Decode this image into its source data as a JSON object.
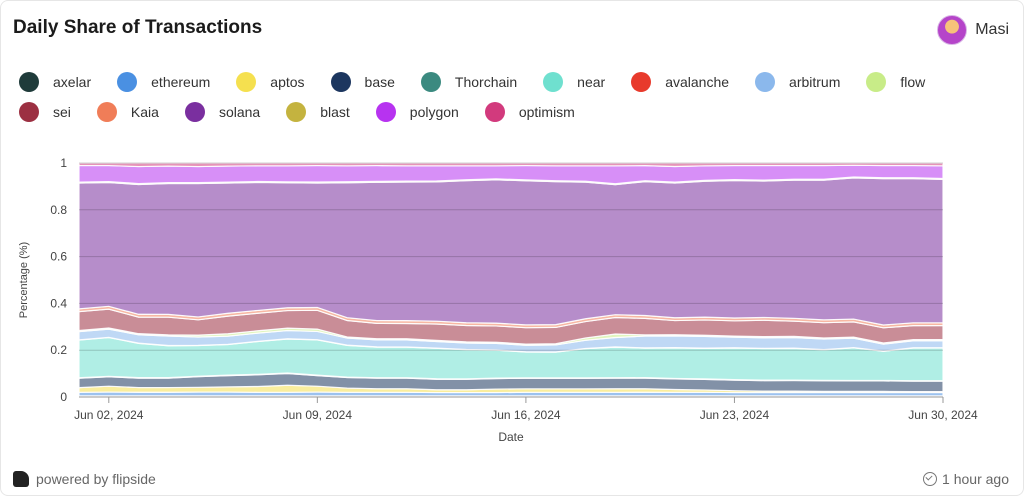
{
  "header": {
    "title": "Daily Share of Transactions",
    "user_name": "Masi"
  },
  "footer": {
    "powered_by": "powered by flipside",
    "updated": "1 hour ago"
  },
  "icons": {
    "brand": "flipside-logo-icon",
    "updated": "clock-check-icon",
    "avatar": "user-avatar"
  },
  "chart_data": {
    "type": "area",
    "stacked": true,
    "normalized": true,
    "xlabel": "Date",
    "ylabel": "Percentage (%)",
    "ylim": [
      0,
      1
    ],
    "yticks": [
      "0",
      "0.2",
      "0.4",
      "0.6",
      "0.8",
      "1"
    ],
    "x": [
      "2024-06-01",
      "2024-06-02",
      "2024-06-03",
      "2024-06-04",
      "2024-06-05",
      "2024-06-06",
      "2024-06-07",
      "2024-06-08",
      "2024-06-09",
      "2024-06-10",
      "2024-06-11",
      "2024-06-12",
      "2024-06-13",
      "2024-06-14",
      "2024-06-15",
      "2024-06-16",
      "2024-06-17",
      "2024-06-18",
      "2024-06-19",
      "2024-06-20",
      "2024-06-21",
      "2024-06-22",
      "2024-06-23",
      "2024-06-24",
      "2024-06-25",
      "2024-06-26",
      "2024-06-27",
      "2024-06-28",
      "2024-06-29",
      "2024-06-30"
    ],
    "xtick_labels": [
      "Jun 02, 2024",
      "Jun 09, 2024",
      "Jun 16, 2024",
      "Jun 23, 2024",
      "Jun 30, 2024"
    ],
    "xtick_index": [
      1,
      8,
      15,
      22,
      29
    ],
    "grid": "horizontal",
    "legend_position": "top",
    "series": [
      {
        "name": "axelar",
        "color": "#1f3b3a",
        "values": [
          0.005,
          0.005,
          0.005,
          0.005,
          0.005,
          0.005,
          0.005,
          0.005,
          0.005,
          0.005,
          0.005,
          0.005,
          0.005,
          0.005,
          0.005,
          0.005,
          0.005,
          0.005,
          0.005,
          0.005,
          0.005,
          0.005,
          0.005,
          0.005,
          0.005,
          0.005,
          0.005,
          0.005,
          0.005,
          0.005
        ]
      },
      {
        "name": "ethereum",
        "color": "#4a90e2",
        "values": [
          0.015,
          0.016,
          0.015,
          0.015,
          0.016,
          0.016,
          0.015,
          0.015,
          0.016,
          0.015,
          0.015,
          0.015,
          0.014,
          0.014,
          0.014,
          0.015,
          0.015,
          0.015,
          0.015,
          0.015,
          0.015,
          0.015,
          0.014,
          0.014,
          0.014,
          0.014,
          0.014,
          0.014,
          0.014,
          0.014
        ]
      },
      {
        "name": "aptos",
        "color": "#f5e04f",
        "values": [
          0.02,
          0.025,
          0.02,
          0.02,
          0.02,
          0.022,
          0.025,
          0.03,
          0.025,
          0.018,
          0.015,
          0.015,
          0.012,
          0.012,
          0.015,
          0.015,
          0.015,
          0.015,
          0.015,
          0.015,
          0.012,
          0.01,
          0.008,
          0.006,
          0.006,
          0.005,
          0.005,
          0.005,
          0.004,
          0.004
        ]
      },
      {
        "name": "base",
        "color": "#1c365f",
        "values": [
          0.04,
          0.04,
          0.04,
          0.04,
          0.045,
          0.048,
          0.05,
          0.05,
          0.045,
          0.045,
          0.045,
          0.045,
          0.045,
          0.045,
          0.045,
          0.045,
          0.045,
          0.045,
          0.045,
          0.045,
          0.045,
          0.045,
          0.045,
          0.045,
          0.045,
          0.045,
          0.045,
          0.045,
          0.045,
          0.045
        ]
      },
      {
        "name": "Thorchain",
        "color": "#3b8a80",
        "values": [
          0.002,
          0.002,
          0.002,
          0.002,
          0.002,
          0.002,
          0.002,
          0.002,
          0.002,
          0.002,
          0.002,
          0.002,
          0.002,
          0.002,
          0.002,
          0.002,
          0.002,
          0.002,
          0.002,
          0.002,
          0.002,
          0.002,
          0.002,
          0.002,
          0.002,
          0.002,
          0.002,
          0.002,
          0.002,
          0.002
        ]
      },
      {
        "name": "near",
        "color": "#6fe0cf",
        "values": [
          0.16,
          0.165,
          0.145,
          0.135,
          0.13,
          0.13,
          0.14,
          0.145,
          0.15,
          0.135,
          0.13,
          0.13,
          0.13,
          0.125,
          0.12,
          0.11,
          0.11,
          0.125,
          0.13,
          0.125,
          0.13,
          0.13,
          0.135,
          0.135,
          0.135,
          0.13,
          0.14,
          0.125,
          0.14,
          0.14
        ]
      },
      {
        "name": "avalanche",
        "color": "#e83a2c",
        "values": [
          0.001,
          0.001,
          0.001,
          0.001,
          0.001,
          0.001,
          0.001,
          0.001,
          0.001,
          0.001,
          0.001,
          0.001,
          0.001,
          0.001,
          0.001,
          0.001,
          0.001,
          0.001,
          0.001,
          0.001,
          0.001,
          0.001,
          0.001,
          0.001,
          0.001,
          0.001,
          0.001,
          0.001,
          0.001,
          0.001
        ]
      },
      {
        "name": "arbitrum",
        "color": "#8bb8ec",
        "values": [
          0.035,
          0.035,
          0.035,
          0.04,
          0.035,
          0.035,
          0.035,
          0.035,
          0.035,
          0.03,
          0.03,
          0.03,
          0.028,
          0.028,
          0.028,
          0.028,
          0.03,
          0.035,
          0.04,
          0.05,
          0.05,
          0.05,
          0.045,
          0.045,
          0.045,
          0.045,
          0.04,
          0.03,
          0.03,
          0.03
        ]
      },
      {
        "name": "flow",
        "color": "#c8ec88",
        "values": [
          0.005,
          0.005,
          0.005,
          0.005,
          0.008,
          0.01,
          0.01,
          0.01,
          0.01,
          0.005,
          0.005,
          0.005,
          0.005,
          0.005,
          0.005,
          0.005,
          0.005,
          0.01,
          0.015,
          0.005,
          0.005,
          0.005,
          0.005,
          0.005,
          0.005,
          0.005,
          0.005,
          0.005,
          0.005,
          0.005
        ]
      },
      {
        "name": "sei",
        "color": "#9c3042",
        "values": [
          0.08,
          0.08,
          0.07,
          0.075,
          0.065,
          0.075,
          0.075,
          0.075,
          0.08,
          0.07,
          0.065,
          0.065,
          0.07,
          0.07,
          0.07,
          0.07,
          0.07,
          0.07,
          0.07,
          0.07,
          0.06,
          0.065,
          0.065,
          0.07,
          0.065,
          0.065,
          0.065,
          0.065,
          0.06,
          0.06
        ]
      },
      {
        "name": "Kaia",
        "color": "#f07d58",
        "values": [
          0.012,
          0.012,
          0.012,
          0.012,
          0.012,
          0.012,
          0.012,
          0.012,
          0.012,
          0.012,
          0.012,
          0.012,
          0.012,
          0.012,
          0.012,
          0.012,
          0.012,
          0.012,
          0.012,
          0.012,
          0.012,
          0.012,
          0.012,
          0.012,
          0.012,
          0.012,
          0.012,
          0.012,
          0.012,
          0.012
        ]
      },
      {
        "name": "solana",
        "color": "#7a2f9f",
        "values": [
          0.535,
          0.527,
          0.549,
          0.554,
          0.565,
          0.554,
          0.547,
          0.532,
          0.53,
          0.575,
          0.588,
          0.59,
          0.595,
          0.61,
          0.615,
          0.615,
          0.612,
          0.585,
          0.553,
          0.567,
          0.573,
          0.578,
          0.586,
          0.583,
          0.588,
          0.596,
          0.605,
          0.628,
          0.618,
          0.614
        ]
      },
      {
        "name": "blast",
        "color": "#c4b33f",
        "values": [
          0.004,
          0.004,
          0.004,
          0.004,
          0.004,
          0.004,
          0.004,
          0.004,
          0.004,
          0.004,
          0.004,
          0.004,
          0.004,
          0.004,
          0.004,
          0.004,
          0.004,
          0.004,
          0.004,
          0.004,
          0.004,
          0.004,
          0.004,
          0.004,
          0.004,
          0.004,
          0.004,
          0.004,
          0.004,
          0.004
        ]
      },
      {
        "name": "polygon",
        "color": "#b733f0",
        "values": [
          0.07,
          0.068,
          0.072,
          0.07,
          0.068,
          0.068,
          0.067,
          0.068,
          0.07,
          0.068,
          0.067,
          0.065,
          0.065,
          0.06,
          0.056,
          0.061,
          0.064,
          0.066,
          0.076,
          0.064,
          0.066,
          0.062,
          0.06,
          0.062,
          0.058,
          0.058,
          0.05,
          0.052,
          0.052,
          0.054
        ]
      },
      {
        "name": "optimism",
        "color": "#d23a7d",
        "values": [
          0.011,
          0.011,
          0.015,
          0.013,
          0.015,
          0.013,
          0.012,
          0.012,
          0.011,
          0.012,
          0.011,
          0.012,
          0.012,
          0.012,
          0.012,
          0.011,
          0.012,
          0.012,
          0.012,
          0.011,
          0.015,
          0.012,
          0.011,
          0.011,
          0.011,
          0.011,
          0.01,
          0.011,
          0.011,
          0.012
        ]
      }
    ]
  }
}
